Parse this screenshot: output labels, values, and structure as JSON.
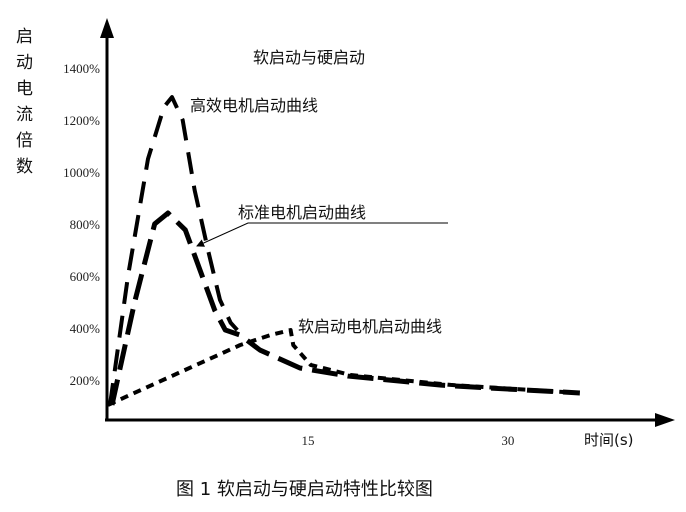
{
  "chart_data": {
    "type": "line",
    "title": "软启动与硬启动",
    "caption": "图 1 软启动与硬启动特性比较图",
    "ylabel": "启动电流倍数",
    "xlabel": "时间(s)",
    "xlim": [
      0,
      42
    ],
    "ylim": [
      46,
      1400
    ],
    "xticks": [
      15,
      30
    ],
    "xtick_labels": [
      "15",
      "30"
    ],
    "yticks": [
      200,
      400,
      600,
      800,
      1000,
      1200,
      1400
    ],
    "ytick_labels": [
      "200%",
      "400%",
      "600%",
      "800%",
      "1000%",
      "1200%",
      "1400%"
    ],
    "grid": false,
    "series": [
      {
        "name": "高效电机启动曲线",
        "x": [
          0.15,
          1.5,
          3,
          4.2,
          4.8,
          5.6,
          6.5,
          7.5,
          8.4,
          9.2,
          9.7
        ],
        "y": [
          104,
          600,
          1050,
          1250,
          1288,
          1200,
          930,
          700,
          508,
          420,
          392
        ]
      },
      {
        "name": "标准电机启动曲线",
        "x": [
          0.3,
          2,
          3.5,
          4.5,
          5.8,
          6.9,
          8,
          8.8,
          9.9,
          11.4,
          14.4,
          18,
          25,
          30,
          35.4
        ],
        "y": [
          104,
          500,
          800,
          842,
          777,
          623,
          469,
          392,
          373,
          315,
          246,
          215,
          180,
          165,
          150
        ]
      },
      {
        "name": "软启动电机启动曲线",
        "x": [
          0,
          9.9,
          12.2,
          13.7,
          13.9,
          15.2,
          18.2,
          25.7,
          35.3
        ],
        "y": [
          104,
          334,
          373,
          392,
          334,
          258,
          219,
          181,
          150
        ]
      }
    ]
  }
}
